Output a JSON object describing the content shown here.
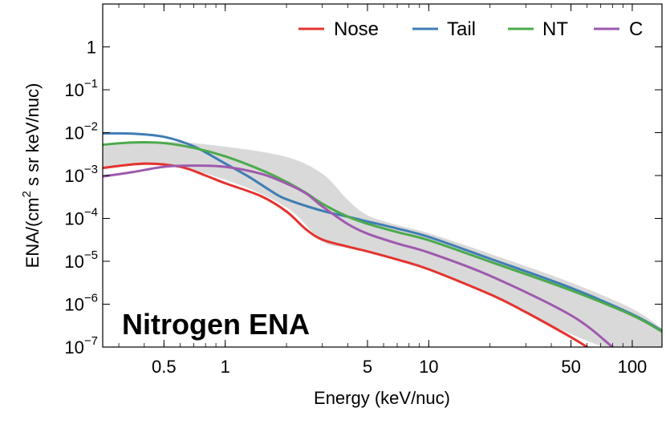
{
  "chart_data": {
    "type": "line",
    "title": "",
    "xlabel": "Energy (keV/nuc)",
    "ylabel_parts": {
      "pre": "ENA/(cm",
      "sup": "2",
      "post": " s sr keV/nuc)"
    },
    "annotation": "Nitrogen ENA",
    "x_scale": "log",
    "y_scale": "log",
    "xlim": [
      0.25,
      140
    ],
    "ylim": [
      1e-07,
      10
    ],
    "x_ticks": [
      {
        "value": 0.5,
        "label": "0.5"
      },
      {
        "value": 1,
        "label": "1"
      },
      {
        "value": 5,
        "label": "5"
      },
      {
        "value": 10,
        "label": "10"
      },
      {
        "value": 50,
        "label": "50"
      },
      {
        "value": 100,
        "label": "100"
      }
    ],
    "y_ticks": [
      {
        "value": 1,
        "base": "1",
        "exp": ""
      },
      {
        "value": 0.1,
        "base": "10",
        "exp": "−1"
      },
      {
        "value": 0.01,
        "base": "10",
        "exp": "−2"
      },
      {
        "value": 0.001,
        "base": "10",
        "exp": "−3"
      },
      {
        "value": 0.0001,
        "base": "10",
        "exp": "−4"
      },
      {
        "value": 1e-05,
        "base": "10",
        "exp": "−5"
      },
      {
        "value": 1e-06,
        "base": "10",
        "exp": "−6"
      },
      {
        "value": 1e-07,
        "base": "10",
        "exp": "−7"
      }
    ],
    "legend_position": "top-right",
    "band": {
      "color": "#d9d9d9",
      "x": [
        0.25,
        0.5,
        1,
        2,
        3,
        4,
        5,
        7,
        10,
        20,
        50,
        100,
        140
      ],
      "upper": [
        0.0048,
        0.0062,
        0.0047,
        0.0027,
        0.0011,
        0.00027,
        0.000118,
        7e-05,
        4.5e-05,
        1.5e-05,
        3.2e-06,
        7.8e-07,
        2.7e-07
      ],
      "lower": [
        0.0015,
        0.0017,
        0.0008,
        0.00018,
        2.9e-05,
        2.1e-05,
        1.7e-05,
        1.15e-05,
        6.5e-06,
        1.6e-06,
        2e-07,
        6e-08,
        5e-08
      ]
    },
    "series": [
      {
        "name": "Nose",
        "color": "#e4332f",
        "x": [
          0.25,
          0.4,
          0.6,
          0.8,
          1,
          1.5,
          2,
          2.5,
          3,
          4,
          5,
          7,
          10,
          20,
          30,
          50,
          60
        ],
        "y": [
          0.0015,
          0.0019,
          0.0016,
          0.001,
          0.00066,
          0.00033,
          0.000145,
          5.5e-05,
          3.2e-05,
          2.2e-05,
          1.7e-05,
          1.1e-05,
          6.5e-06,
          1.7e-06,
          6.5e-07,
          1.7e-07,
          1e-07
        ]
      },
      {
        "name": "Tail",
        "color": "#3f7db4",
        "x": [
          0.25,
          0.35,
          0.5,
          0.7,
          1,
          1.3,
          1.7,
          2,
          3,
          4,
          5,
          7,
          10,
          20,
          50,
          100,
          140
        ],
        "y": [
          0.0096,
          0.0095,
          0.008,
          0.0048,
          0.0019,
          0.00095,
          0.00042,
          0.00028,
          0.00015,
          0.00011,
          8.5e-05,
          5.8e-05,
          3.7e-05,
          1.15e-05,
          2.4e-06,
          5.8e-07,
          2.4e-07
        ]
      },
      {
        "name": "NT",
        "color": "#4caa4c",
        "x": [
          0.25,
          0.35,
          0.5,
          0.7,
          1,
          1.5,
          2,
          2.5,
          3,
          4,
          5,
          7,
          10,
          20,
          50,
          100,
          140
        ],
        "y": [
          0.0052,
          0.0059,
          0.0057,
          0.0044,
          0.0028,
          0.00135,
          0.00071,
          0.00039,
          0.00022,
          0.00011,
          7.5e-05,
          4.8e-05,
          3.1e-05,
          9.8e-06,
          2.1e-06,
          5.5e-07,
          2.3e-07
        ]
      },
      {
        "name": "C",
        "color": "#9e5aae",
        "x": [
          0.25,
          0.35,
          0.5,
          0.7,
          1,
          1.5,
          2,
          2.5,
          3,
          4,
          5,
          7,
          10,
          20,
          50,
          80
        ],
        "y": [
          0.00095,
          0.0012,
          0.0016,
          0.0017,
          0.0016,
          0.0011,
          0.00065,
          0.00038,
          0.00019,
          7.4e-05,
          4.4e-05,
          2.6e-05,
          1.6e-05,
          4.6e-06,
          5.5e-07,
          1e-07
        ]
      }
    ]
  }
}
